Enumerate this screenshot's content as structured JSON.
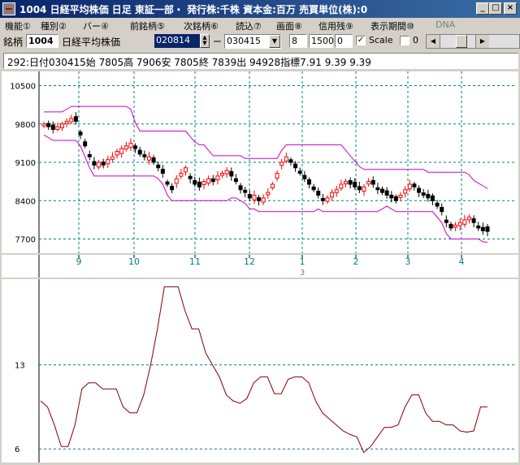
{
  "window": {
    "title": "1004 日経平均株価  日足  東証一部・  発行株:千株  資本金:百万  売買単位(株):0"
  },
  "menu": [
    {
      "label": "機能①",
      "disabled": false
    },
    {
      "label": "種別②",
      "disabled": false
    },
    {
      "label": "バー④",
      "disabled": false
    },
    {
      "label": "前銘柄⑤",
      "disabled": false
    },
    {
      "label": "次銘柄⑥",
      "disabled": false
    },
    {
      "label": "読込⑦",
      "disabled": false
    },
    {
      "label": "画面⑧",
      "disabled": false
    },
    {
      "label": "信用残⑨",
      "disabled": false
    },
    {
      "label": "表示期間⑩",
      "disabled": false
    },
    {
      "label": "DNA",
      "disabled": true
    }
  ],
  "toolbar": {
    "code_label": "銘柄",
    "code": "1004",
    "name": "日経平均株価",
    "date_from": "020814",
    "dash": "ー",
    "date_to": "030415",
    "period": "8",
    "value2": "1500",
    "value3": "0",
    "scale_label": "Scale",
    "scale_checked": true,
    "value4": "0"
  },
  "info_line": "292:日付030415始 7805高 7906安 7805終 7839出 94928指標7.91   9.39   9.39",
  "price_axis": [
    "10500",
    "9800",
    "9100",
    "8400",
    "7700"
  ],
  "month_labels": [
    "9",
    "10",
    "11",
    "12",
    "1",
    "2",
    "3",
    "4"
  ],
  "year_label": "3",
  "indicator_axis": [
    "13",
    "6"
  ],
  "colors": {
    "up_candle": "#ff0000",
    "down_candle": "#000000",
    "band": "#cc00cc",
    "indicator": "#800000",
    "grid": "#008080"
  },
  "chart_data": [
    {
      "type": "line",
      "title": "",
      "ylim": [
        7500,
        10700
      ],
      "series": [
        {
          "values": [
            9800,
            9750,
            9700,
            9750,
            9800,
            9850,
            9900,
            9850,
            9600,
            9400,
            9200,
            9050,
            9100,
            9050,
            9150,
            9200,
            9300,
            9350,
            9400,
            9450,
            9350,
            9250,
            9200,
            9200,
            9100,
            9000,
            8900,
            8700,
            8600,
            8800,
            8900,
            9000,
            8800,
            8700,
            8650,
            8750,
            8800,
            8750,
            8850,
            8900,
            8950,
            8850,
            8750,
            8600,
            8550,
            8450,
            8500,
            8400,
            8450,
            8550,
            8700,
            8900,
            9100,
            9200,
            9100,
            9000,
            8900,
            8800,
            8700,
            8600,
            8500,
            8400,
            8450,
            8550,
            8600,
            8700,
            8750,
            8700,
            8650,
            8600,
            8650,
            8750,
            8700,
            8600,
            8550,
            8500,
            8450,
            8400,
            8500,
            8600,
            8700,
            8650,
            8550,
            8500,
            8450,
            8400,
            8300,
            8200,
            8000,
            7900,
            7950,
            8000,
            8050,
            8100,
            8000,
            7900,
            7850,
            7839
          ]
        }
      ]
    },
    {
      "type": "line",
      "title": "",
      "ylim": [
        5,
        20
      ],
      "series": [
        {
          "values": [
            10,
            9.5,
            8,
            6.2,
            6.2,
            8,
            11,
            11.5,
            11.5,
            11,
            11,
            11,
            9.5,
            9,
            9,
            10.5,
            13,
            16,
            19.5,
            19.5,
            19.5,
            17.5,
            16,
            16,
            14,
            13,
            12,
            10.5,
            10,
            9.8,
            10.2,
            11.5,
            12,
            12,
            10.6,
            10.6,
            11.8,
            12,
            12,
            11.5,
            10,
            9,
            8.5,
            8,
            7.5,
            7.2,
            7,
            5.7,
            6.2,
            7,
            7.8,
            7.8,
            8,
            9.5,
            10.5,
            10.5,
            9,
            8.3,
            8.3,
            8,
            8,
            7.5,
            7.4,
            7.5,
            9.5,
            9.5
          ]
        }
      ]
    }
  ]
}
